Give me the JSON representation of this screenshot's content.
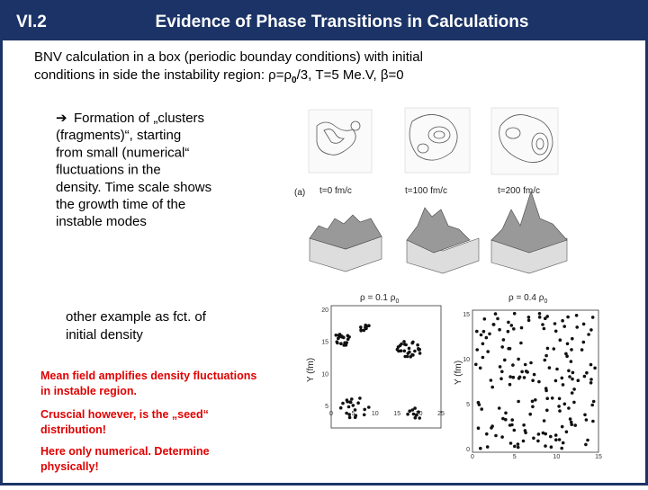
{
  "header": {
    "section": "VI.2",
    "title": "Evidence of Phase Transitions in Calculations"
  },
  "intro": {
    "line1": "BNV calculation in a box (periodic bounday conditions) with initial",
    "line2_parts": [
      "conditions in side the instability region: ",
      "ρ",
      "=",
      "ρ",
      "0",
      "/3, T=5 Me.V, ",
      "β",
      "=0"
    ]
  },
  "bullet": {
    "symbol": "➔",
    "lines": [
      "Formation of „clusters",
      "(fragments)“, starting",
      "from small (numerical“",
      "fluctuations in the",
      "density. Time scale shows",
      "the growth time of the",
      "instable modes"
    ]
  },
  "other_example": [
    "other example as fct. of",
    "initial density"
  ],
  "notes": [
    [
      "Mean field amplifies density fluctuations",
      "in instable region."
    ],
    [
      "Cruscial however, is the „seed“",
      "distribution!"
    ],
    [
      "Here only numerical. Determine",
      "physically!"
    ]
  ],
  "figure_a": {
    "panel_label": "(a)",
    "times": [
      "t=0 fm/c",
      "t=100 fm/c",
      "t=200 fm/c"
    ]
  },
  "figure_b": {
    "left": {
      "density_parts": [
        "ρ = 0.1 ρ",
        "0"
      ],
      "y_label": "Y (fm)",
      "yticks": [
        "20",
        "15",
        "10",
        "5"
      ],
      "xticks": [
        "0",
        "5",
        "10",
        "15",
        "20",
        "25"
      ]
    },
    "right": {
      "density_parts": [
        "ρ = 0.4 ρ",
        "0"
      ],
      "y_label": "Y (fm)",
      "yticks": [
        "15",
        "10",
        "5",
        "0"
      ],
      "xticks": [
        "0",
        "5",
        "10",
        "15"
      ]
    }
  }
}
